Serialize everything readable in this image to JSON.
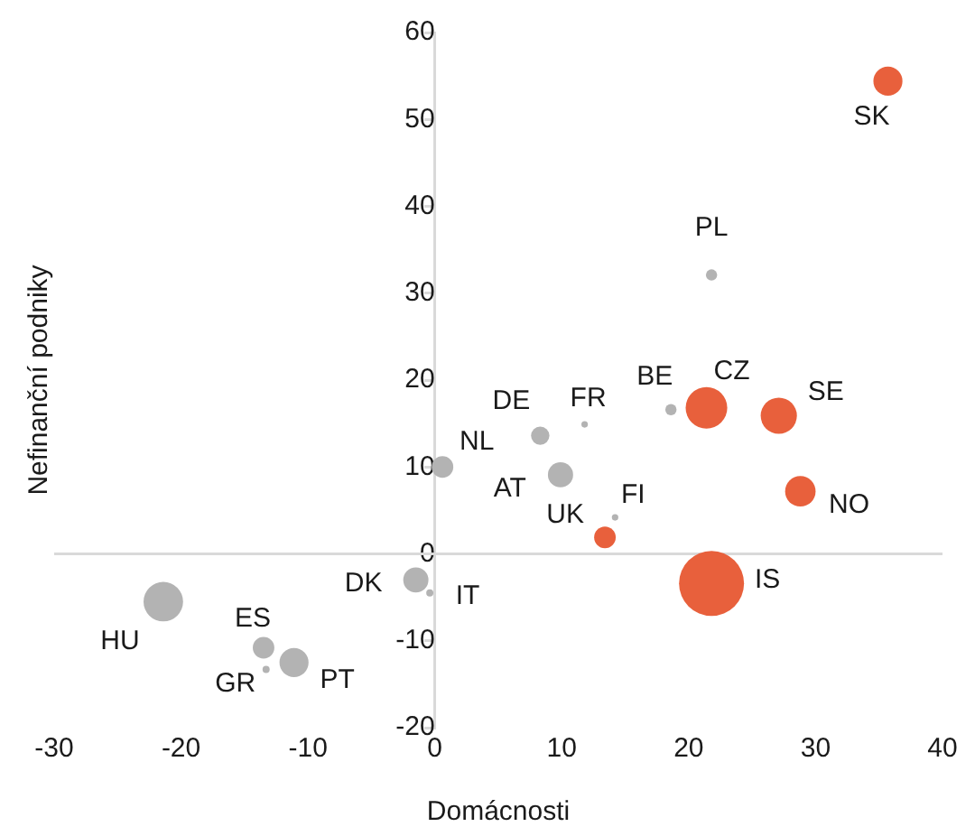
{
  "chart_data": {
    "type": "bubble",
    "xlabel": "Domácnosti",
    "ylabel": "Nefinanční podniky",
    "xlim": [
      -30,
      40
    ],
    "xticks": [
      -30,
      -20,
      -10,
      0,
      10,
      20,
      30,
      40
    ],
    "ylim": [
      -20,
      60
    ],
    "yticks": [
      -20,
      -10,
      0,
      10,
      20,
      30,
      40,
      50,
      60
    ],
    "grid": false,
    "legend": false,
    "ref_lines": [
      {
        "axis": "y",
        "value": 0,
        "color": "#d9d9d9"
      }
    ],
    "series": [
      {
        "color": "#b3b3b3",
        "x": [
          -21.4,
          -13.5,
          -13.3,
          -11.1,
          -1.5,
          -0.4,
          0.6,
          8.3,
          9.9,
          11.8,
          18.6,
          21.8,
          14.2
        ],
        "values": [
          -5.5,
          -10.8,
          -13.3,
          -12.5,
          -3.0,
          -4.5,
          10.0,
          13.6,
          9.1,
          14.9,
          16.6,
          32.1,
          4.2
        ],
        "sizes": [
          0.37,
          0.11,
          0.012,
          0.2,
          0.15,
          0.012,
          0.11,
          0.08,
          0.15,
          0.01,
          0.03,
          0.03,
          0.01
        ]
      },
      {
        "color": "#e8603c",
        "x": [
          13.4,
          21.4,
          27.1,
          28.8,
          21.8,
          35.7
        ],
        "values": [
          1.9,
          16.8,
          15.9,
          7.2,
          -3.4,
          54.4
        ],
        "sizes": [
          0.11,
          0.41,
          0.31,
          0.22,
          1,
          0.2
        ]
      }
    ],
    "annotations": [
      {
        "text": "HU",
        "x": -21.4,
        "y": -5.5
      },
      {
        "text": "ES",
        "x": -13.5,
        "y": -10.8
      },
      {
        "text": "GR",
        "x": -13.3,
        "y": -13.3
      },
      {
        "text": "PT",
        "x": -11.1,
        "y": -12.5
      },
      {
        "text": "DK",
        "x": -1.5,
        "y": -3.0
      },
      {
        "text": "IT",
        "x": -0.4,
        "y": -4.5
      },
      {
        "text": "NL",
        "x": 0.6,
        "y": 10.0
      },
      {
        "text": "DE",
        "x": 8.3,
        "y": 13.6
      },
      {
        "text": "AT",
        "x": 9.9,
        "y": 9.1
      },
      {
        "text": "FR",
        "x": 11.8,
        "y": 14.9
      },
      {
        "text": "BE",
        "x": 18.6,
        "y": 16.6
      },
      {
        "text": "PL",
        "x": 21.8,
        "y": 32.1
      },
      {
        "text": "FI",
        "x": 14.2,
        "y": 4.2
      },
      {
        "text": "UK",
        "x": 13.4,
        "y": 1.9
      },
      {
        "text": "CZ",
        "x": 21.4,
        "y": 16.8
      },
      {
        "text": "SE",
        "x": 27.1,
        "y": 15.9
      },
      {
        "text": "NO",
        "x": 28.8,
        "y": 7.2
      },
      {
        "text": "IS",
        "x": 21.8,
        "y": -3.4
      },
      {
        "text": "SK",
        "x": 35.7,
        "y": 54.4
      }
    ]
  }
}
